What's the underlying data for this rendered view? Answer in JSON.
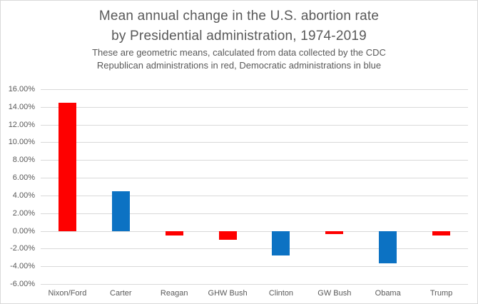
{
  "header": {
    "title_line1": "Mean annual change in the U.S. abortion rate",
    "title_line2": "by Presidential administration, 1974-2019",
    "subtitle_line1": "These are geometric means, calculated from data collected by the CDC",
    "subtitle_line2": "Republican administrations in red, Democratic administrations in blue"
  },
  "chart_data": {
    "type": "bar",
    "title": "Mean annual change in the U.S. abortion rate by Presidential administration, 1974-2019",
    "subtitle": "These are geometric means, calculated from data collected by the CDC. Republican administrations in red, Democratic administrations in blue",
    "categories": [
      "Nixon/Ford",
      "Carter",
      "Reagan",
      "GHW Bush",
      "Clinton",
      "GW Bush",
      "Obama",
      "Trump"
    ],
    "values": [
      14.5,
      4.5,
      -0.5,
      -1.0,
      -2.8,
      -0.4,
      -3.7,
      -0.5
    ],
    "parties": [
      "republican",
      "democratic",
      "republican",
      "republican",
      "democratic",
      "republican",
      "democratic",
      "republican"
    ],
    "xlabel": "",
    "ylabel": "",
    "ylim": [
      -6,
      16
    ],
    "y_tick_step": 2,
    "y_tick_labels": [
      "16.00%",
      "14.00%",
      "12.00%",
      "10.00%",
      "8.00%",
      "6.00%",
      "4.00%",
      "2.00%",
      "0.00%",
      "-2.00%",
      "-4.00%",
      "-6.00%"
    ],
    "grid": "horizontal",
    "legend_position": "none",
    "colors": {
      "republican": "#fe0000",
      "democratic": "#0c72c3",
      "gridline": "#d9d9d9",
      "text": "#595959"
    }
  }
}
